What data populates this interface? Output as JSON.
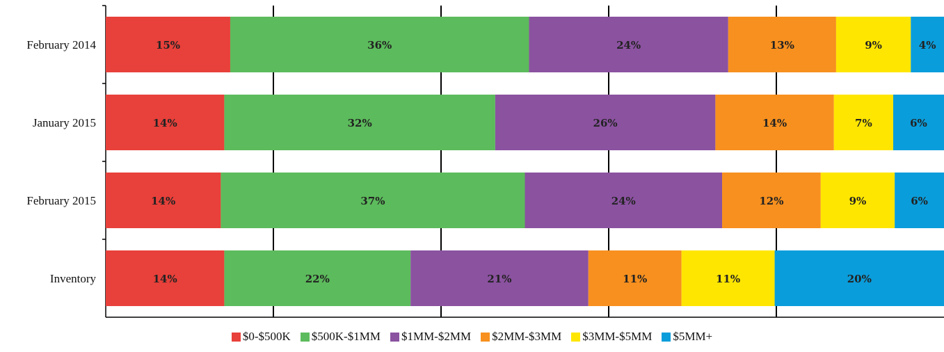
{
  "chart_data": {
    "type": "bar",
    "orientation": "horizontal",
    "stacked": "percent",
    "categories": [
      "February 2014",
      "January 2015",
      "February 2015",
      "Inventory"
    ],
    "series": [
      {
        "name": "$0-$500K",
        "color": "#e8403a",
        "values": [
          15,
          14,
          14,
          14
        ]
      },
      {
        "name": "$500K-$1MM",
        "color": "#5cbb5c",
        "values": [
          36,
          32,
          37,
          22
        ]
      },
      {
        "name": "$1MM-$2MM",
        "color": "#8b52a0",
        "values": [
          24,
          26,
          24,
          21
        ]
      },
      {
        "name": "$2MM-$3MM",
        "color": "#f7901e",
        "values": [
          13,
          14,
          12,
          11
        ]
      },
      {
        "name": "$3MM-$5MM",
        "color": "#ffe600",
        "values": [
          9,
          7,
          9,
          11
        ]
      },
      {
        "name": "$5MM+",
        "color": "#0a9ddb",
        "values": [
          4,
          6,
          6,
          20
        ]
      }
    ],
    "label_suffix": "%",
    "legend_position": "bottom",
    "grid": "vertical",
    "xlim": [
      0,
      100
    ]
  }
}
